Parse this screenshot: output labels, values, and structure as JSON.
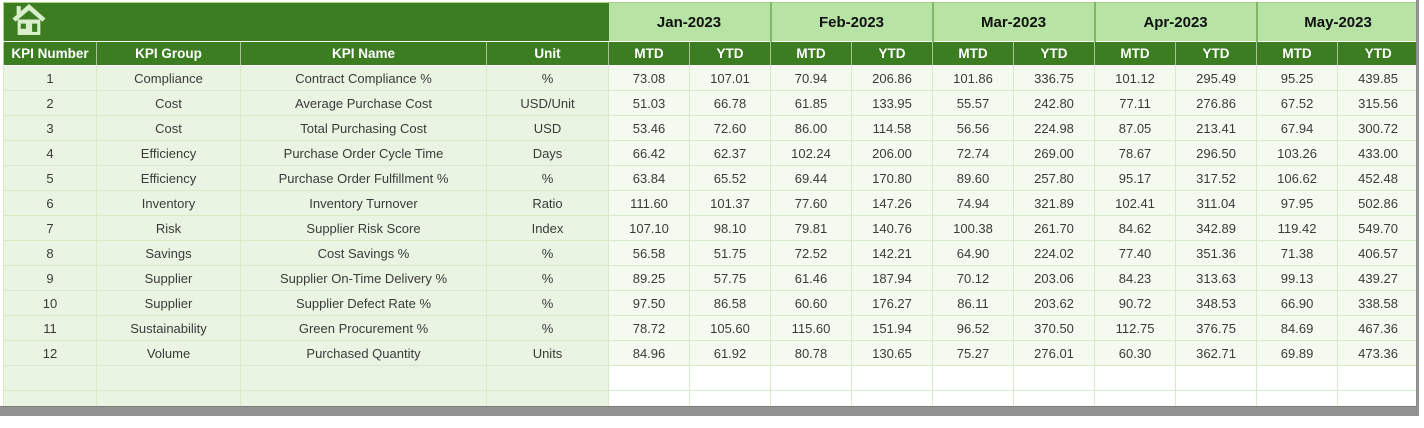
{
  "table": {
    "fixed_headers": [
      "KPI Number",
      "KPI Group",
      "KPI Name",
      "Unit"
    ],
    "months": [
      "Jan-2023",
      "Feb-2023",
      "Mar-2023",
      "Apr-2023",
      "May-2023"
    ],
    "sub_headers": [
      "MTD",
      "YTD"
    ],
    "value_columns": 10,
    "rows": [
      {
        "number": "1",
        "group": "Compliance",
        "name": "Contract Compliance %",
        "unit": "%",
        "values": [
          "73.08",
          "107.01",
          "70.94",
          "206.86",
          "101.86",
          "336.75",
          "101.12",
          "295.49",
          "95.25",
          "439.85"
        ]
      },
      {
        "number": "2",
        "group": "Cost",
        "name": "Average Purchase Cost",
        "unit": "USD/Unit",
        "values": [
          "51.03",
          "66.78",
          "61.85",
          "133.95",
          "55.57",
          "242.80",
          "77.11",
          "276.86",
          "67.52",
          "315.56"
        ]
      },
      {
        "number": "3",
        "group": "Cost",
        "name": "Total Purchasing Cost",
        "unit": "USD",
        "values": [
          "53.46",
          "72.60",
          "86.00",
          "114.58",
          "56.56",
          "224.98",
          "87.05",
          "213.41",
          "67.94",
          "300.72"
        ]
      },
      {
        "number": "4",
        "group": "Efficiency",
        "name": "Purchase Order Cycle Time",
        "unit": "Days",
        "values": [
          "66.42",
          "62.37",
          "102.24",
          "206.00",
          "72.74",
          "269.00",
          "78.67",
          "296.50",
          "103.26",
          "433.00"
        ]
      },
      {
        "number": "5",
        "group": "Efficiency",
        "name": "Purchase Order Fulfillment %",
        "unit": "%",
        "values": [
          "63.84",
          "65.52",
          "69.44",
          "170.80",
          "89.60",
          "257.80",
          "95.17",
          "317.52",
          "106.62",
          "452.48"
        ]
      },
      {
        "number": "6",
        "group": "Inventory",
        "name": "Inventory Turnover",
        "unit": "Ratio",
        "values": [
          "111.60",
          "101.37",
          "77.60",
          "147.26",
          "74.94",
          "321.89",
          "102.41",
          "311.04",
          "97.95",
          "502.86"
        ]
      },
      {
        "number": "7",
        "group": "Risk",
        "name": "Supplier Risk Score",
        "unit": "Index",
        "values": [
          "107.10",
          "98.10",
          "79.81",
          "140.76",
          "100.38",
          "261.70",
          "84.62",
          "342.89",
          "119.42",
          "549.70"
        ]
      },
      {
        "number": "8",
        "group": "Savings",
        "name": "Cost Savings %",
        "unit": "%",
        "values": [
          "56.58",
          "51.75",
          "72.52",
          "142.21",
          "64.90",
          "224.02",
          "77.40",
          "351.36",
          "71.38",
          "406.57"
        ]
      },
      {
        "number": "9",
        "group": "Supplier",
        "name": "Supplier On-Time Delivery %",
        "unit": "%",
        "values": [
          "89.25",
          "57.75",
          "61.46",
          "187.94",
          "70.12",
          "203.06",
          "84.23",
          "313.63",
          "99.13",
          "439.27"
        ]
      },
      {
        "number": "10",
        "group": "Supplier",
        "name": "Supplier Defect Rate %",
        "unit": "%",
        "values": [
          "97.50",
          "86.58",
          "60.60",
          "176.27",
          "86.11",
          "203.62",
          "90.72",
          "348.53",
          "66.90",
          "338.58"
        ]
      },
      {
        "number": "11",
        "group": "Sustainability",
        "name": "Green Procurement %",
        "unit": "%",
        "values": [
          "78.72",
          "105.60",
          "115.60",
          "151.94",
          "96.52",
          "370.50",
          "112.75",
          "376.75",
          "84.69",
          "467.36"
        ]
      },
      {
        "number": "12",
        "group": "Volume",
        "name": "Purchased Quantity",
        "unit": "Units",
        "values": [
          "84.96",
          "61.92",
          "80.78",
          "130.65",
          "75.27",
          "276.01",
          "60.30",
          "362.71",
          "69.89",
          "473.36"
        ]
      }
    ],
    "empty_rows": 2
  },
  "icons": {
    "home": "home-icon"
  },
  "colors": {
    "header_green": "#3c7d21",
    "month_green": "#b7e3a4",
    "month_divider": "#82b765",
    "outline_green": "#a9d18e",
    "row_green": "#eaf4e2",
    "value_bg": "#f5faf1",
    "grid_line": "#d7ebc9",
    "text_dark": "#3a3a3a",
    "frame_gray": "#929292",
    "icon_light": "#d9efcb"
  }
}
